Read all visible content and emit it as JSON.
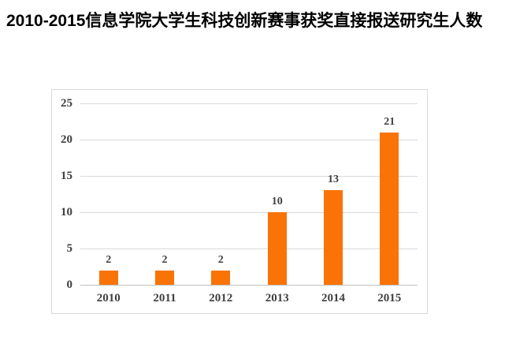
{
  "page": {
    "title": "2010-2015信息学院大学生科技创新赛事获奖直接报送研究生人数"
  },
  "chart_data": {
    "type": "bar",
    "title": "2010-2015信息学院大学生科技创新赛事获奖直接报送研究生人数",
    "categories": [
      "2010",
      "2011",
      "2012",
      "2013",
      "2014",
      "2015"
    ],
    "values": [
      2,
      2,
      2,
      10,
      13,
      21
    ],
    "y_ticks": [
      0,
      5,
      10,
      15,
      20,
      25
    ],
    "ylim": [
      0,
      25
    ],
    "xlabel": "",
    "ylabel": "",
    "grid": true,
    "legend": "none",
    "colors": {
      "bar": "#f97306",
      "gridline": "#d9d9d9",
      "axis_line": "#bfbfbf",
      "panel_border": "#d9d9d9",
      "tick_text": "#404040",
      "title_text": "#000000"
    }
  }
}
